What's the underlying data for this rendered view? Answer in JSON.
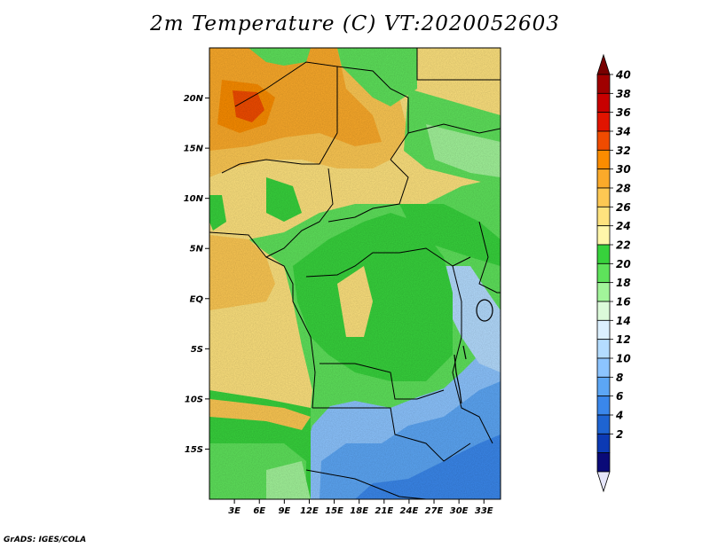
{
  "title": "2m Temperature (C) VT:2020052603",
  "credit": "GrADS: IGES/COLA",
  "map": {
    "lon_range": [
      0,
      35
    ],
    "lat_range": [
      -20,
      25
    ],
    "lat_ticks": [
      {
        "value": 20,
        "label": "20N"
      },
      {
        "value": 15,
        "label": "15N"
      },
      {
        "value": 10,
        "label": "10N"
      },
      {
        "value": 5,
        "label": "5N"
      },
      {
        "value": 0,
        "label": "EQ"
      },
      {
        "value": -5,
        "label": "5S"
      },
      {
        "value": -10,
        "label": "10S"
      },
      {
        "value": -15,
        "label": "15S"
      }
    ],
    "lon_ticks": [
      {
        "value": 3,
        "label": "3E"
      },
      {
        "value": 6,
        "label": "6E"
      },
      {
        "value": 9,
        "label": "9E"
      },
      {
        "value": 12,
        "label": "12E"
      },
      {
        "value": 15,
        "label": "15E"
      },
      {
        "value": 18,
        "label": "18E"
      },
      {
        "value": 21,
        "label": "21E"
      },
      {
        "value": 24,
        "label": "24E"
      },
      {
        "value": 27,
        "label": "27E"
      },
      {
        "value": 30,
        "label": "30E"
      },
      {
        "value": 33,
        "label": "33E"
      }
    ]
  },
  "colorbar": {
    "levels": [
      {
        "label": "40",
        "color": "#a00000"
      },
      {
        "label": "38",
        "color": "#c80000"
      },
      {
        "label": "36",
        "color": "#e11400"
      },
      {
        "label": "34",
        "color": "#f04b00"
      },
      {
        "label": "32",
        "color": "#fa8c00"
      },
      {
        "label": "30",
        "color": "#fbaa2a"
      },
      {
        "label": "28",
        "color": "#fdc853"
      },
      {
        "label": "26",
        "color": "#fee27e"
      },
      {
        "label": "24",
        "color": "#fff6aa"
      },
      {
        "label": "22",
        "color": "#37d23c"
      },
      {
        "label": "20",
        "color": "#5ee25b"
      },
      {
        "label": "18",
        "color": "#a2f49a"
      },
      {
        "label": "16",
        "color": "#dcfada"
      },
      {
        "label": "14",
        "color": "#dcf0ff"
      },
      {
        "label": "12",
        "color": "#b4dcff"
      },
      {
        "label": "10",
        "color": "#8cc4ff"
      },
      {
        "label": "8",
        "color": "#5ca6f5"
      },
      {
        "label": "6",
        "color": "#3a87eb"
      },
      {
        "label": "4",
        "color": "#1e64d2"
      },
      {
        "label": "2",
        "color": "#0c3ab4"
      }
    ],
    "below_color": "#0a0a78",
    "under_color": "#e6e6fa",
    "over_color": "#780000"
  }
}
